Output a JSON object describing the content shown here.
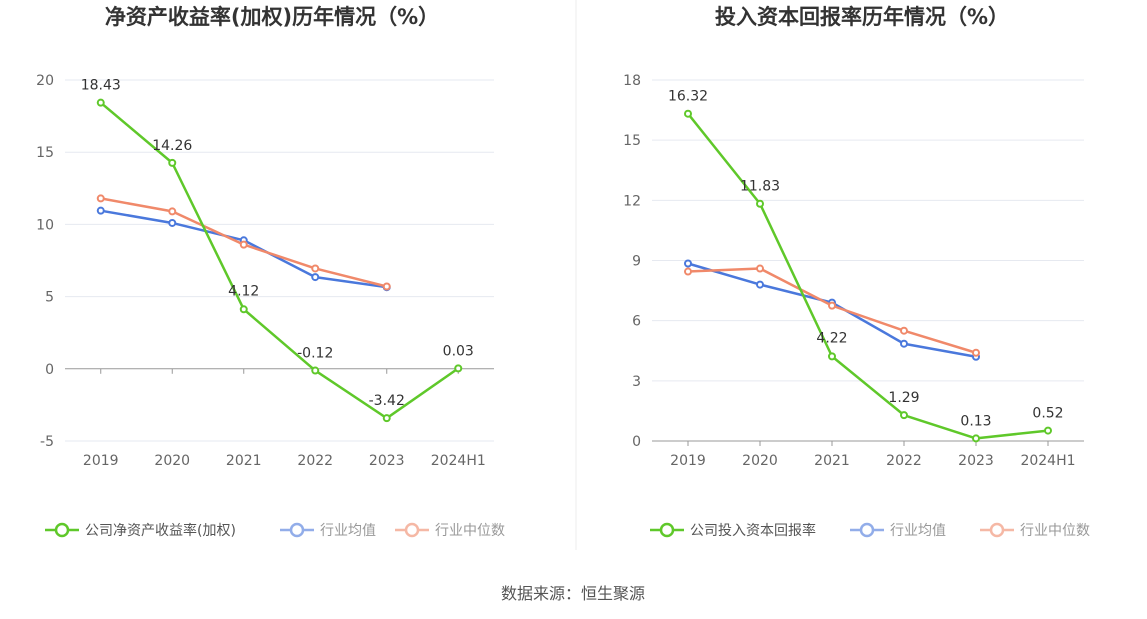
{
  "chart_data": [
    {
      "type": "line",
      "title": "净资产收益率(加权)历年情况（%）",
      "categories": [
        "2019",
        "2020",
        "2021",
        "2022",
        "2023",
        "2024H1"
      ],
      "ylim": [
        -5,
        20
      ],
      "yticks": [
        -5,
        0,
        5,
        10,
        15,
        20
      ],
      "grid": true,
      "legend_position": "bottom",
      "series": [
        {
          "name": "公司净资产收益率(加权)",
          "color": "#5fc82a",
          "values": [
            18.43,
            14.26,
            4.12,
            -0.12,
            -3.42,
            0.03
          ],
          "labels": [
            "18.43",
            "14.26",
            "4.12",
            "-0.12",
            "-3.42",
            "0.03"
          ]
        },
        {
          "name": "行业均值",
          "color": "#4a78dc",
          "values": [
            10.95,
            10.1,
            8.9,
            6.35,
            5.65,
            null
          ]
        },
        {
          "name": "行业中位数",
          "color": "#f0896a",
          "values": [
            11.8,
            10.9,
            8.6,
            6.95,
            5.7,
            null
          ]
        }
      ]
    },
    {
      "type": "line",
      "title": "投入资本回报率历年情况（%）",
      "categories": [
        "2019",
        "2020",
        "2021",
        "2022",
        "2023",
        "2024H1"
      ],
      "ylim": [
        0,
        18
      ],
      "yticks": [
        0,
        3,
        6,
        9,
        12,
        15,
        18
      ],
      "grid": true,
      "legend_position": "bottom",
      "series": [
        {
          "name": "公司投入资本回报率",
          "color": "#5fc82a",
          "values": [
            16.32,
            11.83,
            4.22,
            1.29,
            0.13,
            0.52
          ],
          "labels": [
            "16.32",
            "11.83",
            "4.22",
            "1.29",
            "0.13",
            "0.52"
          ]
        },
        {
          "name": "行业均值",
          "color": "#4a78dc",
          "values": [
            8.85,
            7.8,
            6.9,
            4.85,
            4.2,
            null
          ]
        },
        {
          "name": "行业中位数",
          "color": "#f0896a",
          "values": [
            8.45,
            8.6,
            6.75,
            5.5,
            4.4,
            null
          ]
        }
      ]
    }
  ],
  "source": "数据来源：恒生聚源"
}
